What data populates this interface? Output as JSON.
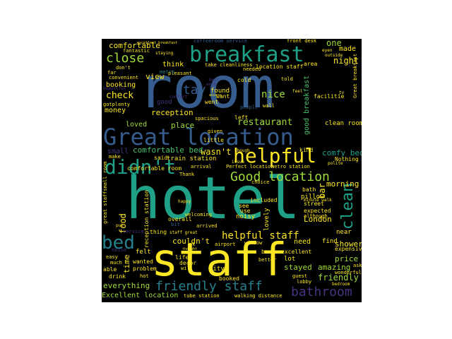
{
  "palette": {
    "background": "#000000",
    "yellow": "#fde725",
    "lime": "#a0da39",
    "green": "#4ac16d",
    "teal": "#1fa187",
    "cyan": "#277f8e",
    "blue": "#365c8d",
    "indigo": "#46327e",
    "purple": "#440154"
  },
  "words": {
    "room": "room",
    "hotel": "hotel",
    "staff": "staff",
    "breakfast": "breakfast",
    "great_location": "Great location",
    "didnt": "didn't",
    "helpful": "helpful",
    "clean": "clean",
    "bed": "bed",
    "friendly_staff": "friendly staff",
    "bathroom": "bathroom",
    "good_location": "Good location",
    "close": "close",
    "stay": "stay",
    "comfortable": "comfortable",
    "check": "check",
    "view": "view",
    "night": "night",
    "one": "one",
    "made": "made",
    "restaurant": "restaurant",
    "nice": "nice",
    "reception": "reception",
    "money": "money",
    "loved": "loved",
    "place": "place",
    "comfy_bed": "comfy bed",
    "comfortable_bed": "comfortable bed",
    "wasnt": "wasn't",
    "helpful_staff": "helpful staff",
    "food": "food",
    "excellent_location": "Excellent location",
    "everything": "everything",
    "shower": "shower",
    "price": "price",
    "friendly": "friendly",
    "stayed": "stayed",
    "amazing": "amazing",
    "location_staff": "location staff",
    "clean_room": "clean room",
    "good_breakfast": "good breakfast",
    "booking": "booking",
    "time": "time",
    "small": "small",
    "morning": "morning",
    "london": "London",
    "coffeeroom_service": "coffeeroom service",
    "front_desk": "front desk",
    "fantastic": "fantastic",
    "staying": "staying",
    "think": "think",
    "pleasant": "pleasant",
    "take_cleanliness": "take cleanliness",
    "area": "area",
    "eyen": "eyen",
    "outside": "outside",
    "far": "far",
    "dont": "don't",
    "metro": "metro",
    "needed": "needed",
    "cold": "cold",
    "told": "told",
    "found": "found",
    "want": "want",
    "went": "went",
    "wall": "wall",
    "convenient": "convenient",
    "facilitie": "facilitie",
    "spacious": "spacious",
    "left": "left",
    "little": "little",
    "given": "given",
    "kind": "kind",
    "make": "make",
    "said": "said",
    "train_station": "train station",
    "perfect_location": "Perfect location",
    "metro_station": "metro station",
    "nothing": "Nothing",
    "polite": "polite",
    "comfortable_room": "comfortable room",
    "arrival": "arrival",
    "thank": "Thank",
    "choice": "choice",
    "bath": "bath",
    "bar": "bar",
    "included": "included",
    "noisy": "noisy",
    "see": "see",
    "pillow": "pillow",
    "street": "street",
    "expected": "expected",
    "lovely": "lovely",
    "overall": "overall",
    "minute_walk": "minute walk",
    "welcoming": "welcoming",
    "reception_station": "reception station",
    "thing": "thing",
    "staff_great": "staff great",
    "couldnt": "couldn't",
    "near": "near",
    "need": "need",
    "excellent": "excellent",
    "find": "find",
    "expensive": "expensive",
    "back": "back",
    "ok": "ok",
    "airport": "airport",
    "window": "window",
    "felt": "felt",
    "wanted": "wanted",
    "decor": "decor",
    "life": "life",
    "city": "city",
    "booked": "booked",
    "lot": "lot",
    "ask": "ask",
    "wonderful": "wonderful",
    "guest": "guest",
    "lobby": "lobby",
    "much": "much",
    "able": "able",
    "drink": "drink",
    "hot": "hot",
    "problem": "problem",
    "will": "will",
    "tube_station": "tube station",
    "walking_distance": "walking distance",
    "bedroom": "bedroom",
    "great_staffsmall_room": "great staffsmall room",
    "breakfast_great": "Great breakfast",
    "arrived": "arrived",
    "noise": "noise",
    "easy": "easy",
    "use": "use",
    "people": "people",
    "issue": "issue",
    "though": "though",
    "although": "although",
    "recommend": "recommend",
    "service": "service",
    "work": "work",
    "best": "best",
    "gotplenty": "gotplenty",
    "beautiful": "beautiful",
    "comfort": "comfort",
    "good": "good",
    "away": "away",
    "put": "put",
    "bit": "bit",
    "happy": "happy",
    "quiet": "quiet",
    "thought": "thought",
    "better": "better",
    "great_view": "great view",
    "tv": "tv",
    "excellent_breakfast": "excellent breakfast",
    "feel": "feel",
    "still": "still",
    "access": "access"
  }
}
